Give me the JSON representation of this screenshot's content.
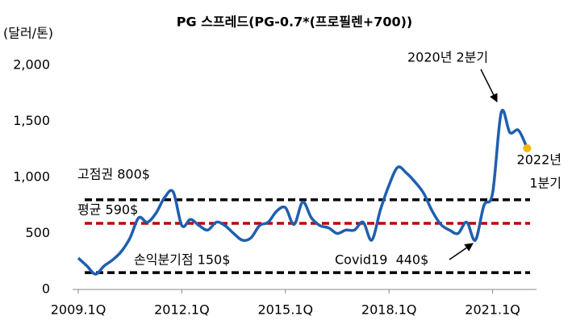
{
  "chart_data": {
    "type": "line",
    "title": "PG 스프레드(PG-0.7*(프로필렌+700))",
    "ylabel": "(달러/톤)",
    "categories": [
      "2009.1Q",
      null,
      null,
      null,
      null,
      null,
      null,
      null,
      null,
      null,
      null,
      null,
      "2012.1Q",
      null,
      null,
      null,
      null,
      null,
      null,
      null,
      null,
      null,
      null,
      null,
      "2015.1Q",
      null,
      null,
      null,
      null,
      null,
      null,
      null,
      null,
      null,
      null,
      null,
      "2018.1Q",
      null,
      null,
      null,
      null,
      null,
      null,
      null,
      null,
      null,
      null,
      null,
      "2021.1Q",
      null,
      null,
      null,
      null
    ],
    "series": [
      {
        "color": "#1f5fae",
        "values": [
          280,
          210,
          137,
          210,
          265,
          340,
          460,
          640,
          600,
          680,
          820,
          870,
          570,
          625,
          570,
          530,
          600,
          570,
          500,
          440,
          460,
          570,
          600,
          700,
          730,
          580,
          780,
          640,
          570,
          550,
          500,
          530,
          530,
          600,
          440,
          710,
          930,
          1090,
          1040,
          960,
          860,
          700,
          580,
          530,
          500,
          600,
          440,
          750,
          860,
          1580,
          1400,
          1420,
          1260
        ]
      }
    ],
    "highlight_color": "#f5b800",
    "ylim": [
      0,
      2000
    ],
    "yticks": [
      0,
      500,
      {
        "value": 1000,
        "label": "1,000"
      },
      {
        "value": 1500,
        "label": "1,500"
      },
      {
        "value": 2000,
        "label": "2,000"
      }
    ],
    "reference_lines": [
      {
        "value": 800,
        "label": "고점권 800$",
        "color": "#000000"
      },
      {
        "value": 590,
        "label": "평균 590$",
        "color": "#c00000"
      },
      {
        "value": 150,
        "label": "손익분기점 150$",
        "color": "#000000"
      }
    ],
    "annotations": [
      {
        "text": "2020년 2분기"
      },
      {
        "lines": [
          "2022년",
          "1분기"
        ]
      },
      {
        "text": "Covid19  440$"
      }
    ]
  }
}
